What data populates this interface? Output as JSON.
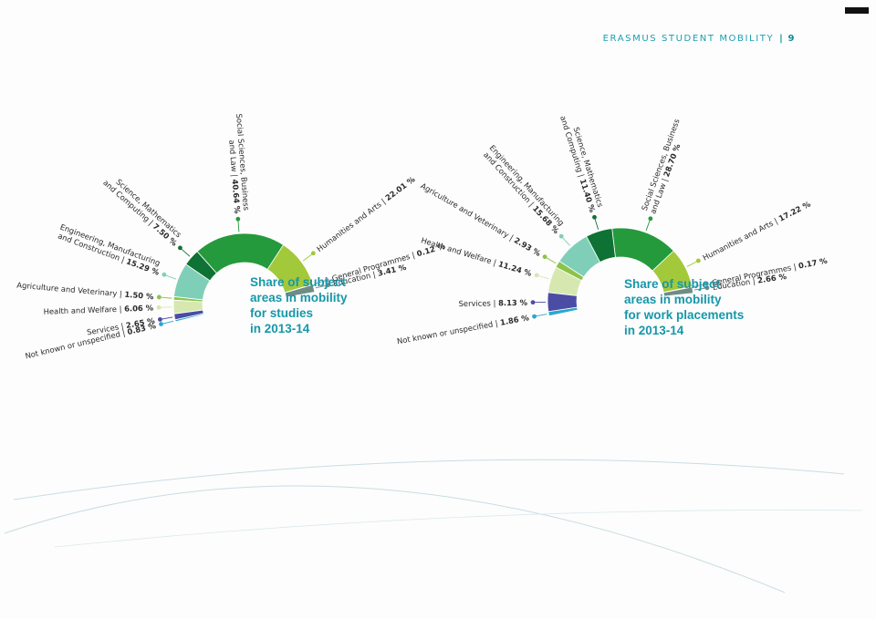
{
  "header": {
    "title": "ERASMUS STUDENT MOBILITY",
    "page_number": "9"
  },
  "colors": {
    "teal": "#1697aa",
    "segments": [
      "#6f8b86",
      "#8a9ea6",
      "#a2c93a",
      "#249a3c",
      "#0e7234",
      "#7fcfb8",
      "#8bc34a",
      "#d6e8b0",
      "#4b4ca3",
      "#2aa7d0"
    ]
  },
  "chart_data": [
    {
      "type": "pie",
      "variant": "half-donut",
      "title": [
        "Share of subject",
        "areas in mobility",
        "for studies",
        "in 2013-14"
      ],
      "unit": "%",
      "categories": [
        "Education",
        "General Programmes",
        "Humanities and Arts",
        "Social Sciences, Business and Law",
        "Science, Mathematics and Computing",
        "Engineering, Manufacturing and Construction",
        "Agriculture and Veterinary",
        "Health and Welfare",
        "Services",
        "Not known or unspecified"
      ],
      "values": [
        3.41,
        0.12,
        22.01,
        40.64,
        7.5,
        15.29,
        1.5,
        6.06,
        2.65,
        0.83
      ],
      "labels": [
        {
          "lines": [
            "Education |"
          ],
          "value": "3.41 %"
        },
        {
          "lines": [
            "General Programmes |"
          ],
          "value": "0.12 %"
        },
        {
          "lines": [
            "Humanities and Arts |"
          ],
          "value": "22.01 %"
        },
        {
          "lines": [
            "Social Sciences, Business",
            "and Law |"
          ],
          "value": "40.64 %"
        },
        {
          "lines": [
            "Science, Mathematics",
            "and Computing |"
          ],
          "value": "7.50 %"
        },
        {
          "lines": [
            "Engineering, Manufacturing",
            "and Construction |"
          ],
          "value": "15.29 %"
        },
        {
          "lines": [
            "Agriculture and Veterinary |"
          ],
          "value": "1.50 %"
        },
        {
          "lines": [
            "Health and Welfare |"
          ],
          "value": "6.06 %"
        },
        {
          "lines": [
            "Services |"
          ],
          "value": "2.65 %"
        },
        {
          "lines": [
            "Not known or unspecified |"
          ],
          "value": "0.83 %"
        }
      ]
    },
    {
      "type": "pie",
      "variant": "half-donut",
      "title": [
        "Share of subject",
        "areas in mobility",
        "for work placements",
        "in 2013-14"
      ],
      "unit": "%",
      "categories": [
        "Education",
        "General Programmes",
        "Humanities and Arts",
        "Social Sciences, Business and Law",
        "Science, Mathematics and Computing",
        "Engineering, Manufacturing and Construction",
        "Agriculture and Veterinary",
        "Health and Welfare",
        "Services",
        "Not known or unspecified"
      ],
      "values": [
        2.66,
        0.17,
        17.22,
        28.7,
        11.4,
        15.68,
        2.93,
        11.24,
        8.13,
        1.86
      ],
      "labels": [
        {
          "lines": [
            "Education |"
          ],
          "value": "2.66 %"
        },
        {
          "lines": [
            "General Programmes |"
          ],
          "value": "0.17 %"
        },
        {
          "lines": [
            "Humanities and Arts |"
          ],
          "value": "17.22 %"
        },
        {
          "lines": [
            "Social Sciences, Business",
            "and Law |"
          ],
          "value": "28.70 %"
        },
        {
          "lines": [
            "Science, Mathematics",
            "and Computing |"
          ],
          "value": "11.40 %"
        },
        {
          "lines": [
            "Engineering, Manufacturing",
            "and Construction |"
          ],
          "value": "15.68 %"
        },
        {
          "lines": [
            "Agriculture and Veterinary |"
          ],
          "value": "2.93 %"
        },
        {
          "lines": [
            "Health and Welfare |"
          ],
          "value": "11.24 %"
        },
        {
          "lines": [
            "Services |"
          ],
          "value": "8.13 %"
        },
        {
          "lines": [
            "Not known or unspecified |"
          ],
          "value": "1.86 %"
        }
      ]
    }
  ]
}
